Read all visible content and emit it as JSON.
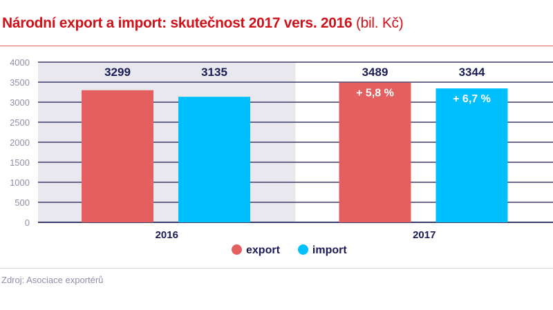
{
  "title": "Národní export a import: skutečnost 2017 vers. 2016",
  "title_unit": "(bil. Kč)",
  "source": "Zdroj: Asociace exportérů",
  "chart_data": {
    "type": "bar",
    "categories": [
      "2016",
      "2017"
    ],
    "series": [
      {
        "name": "export",
        "values": [
          3299,
          3489
        ],
        "color": "#e45f5f"
      },
      {
        "name": "import",
        "values": [
          3135,
          3344
        ],
        "color": "#00bfff"
      }
    ],
    "annotations": [
      {
        "category": "2017",
        "series": "export",
        "text": "+ 5,8 %"
      },
      {
        "category": "2017",
        "series": "import",
        "text": "+ 6,7 %"
      }
    ],
    "yticks": [
      "0",
      "500",
      "1000",
      "1500",
      "2000",
      "2500",
      "3000",
      "3500",
      "4000"
    ],
    "ylim": [
      0,
      4000
    ],
    "grid": true,
    "legend": "bottom-center",
    "highlight_category": "2016",
    "highlight_color": "#e8e8ee"
  }
}
